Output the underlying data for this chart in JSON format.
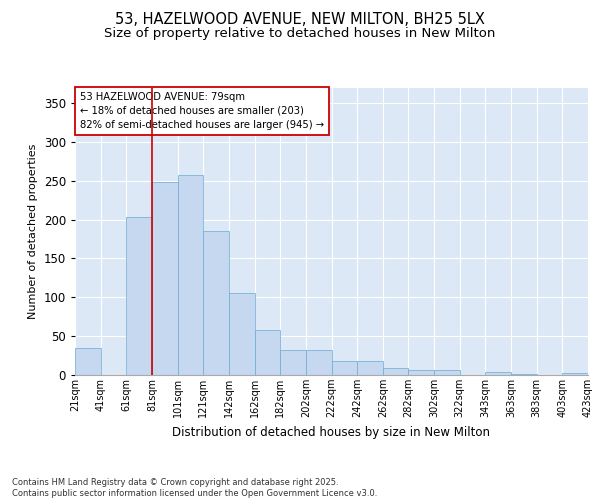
{
  "title_line1": "53, HAZELWOOD AVENUE, NEW MILTON, BH25 5LX",
  "title_line2": "Size of property relative to detached houses in New Milton",
  "xlabel": "Distribution of detached houses by size in New Milton",
  "ylabel": "Number of detached properties",
  "bar_color": "#c5d8f0",
  "bar_edge_color": "#6aaad4",
  "background_color": "#dce8f5",
  "annotation_text": "53 HAZELWOOD AVENUE: 79sqm\n← 18% of detached houses are smaller (203)\n82% of semi-detached houses are larger (945) →",
  "vline_color": "#cc0000",
  "categories": [
    "21sqm",
    "41sqm",
    "61sqm",
    "81sqm",
    "101sqm",
    "121sqm",
    "142sqm",
    "162sqm",
    "182sqm",
    "202sqm",
    "222sqm",
    "242sqm",
    "262sqm",
    "282sqm",
    "302sqm",
    "322sqm",
    "343sqm",
    "363sqm",
    "383sqm",
    "403sqm",
    "423sqm"
  ],
  "bins_values": [
    35,
    0,
    203,
    248,
    258,
    185,
    106,
    58,
    32,
    32,
    18,
    18,
    9,
    6,
    6,
    0,
    4,
    1,
    0,
    2
  ],
  "ylim": [
    0,
    370
  ],
  "yticks": [
    0,
    50,
    100,
    150,
    200,
    250,
    300,
    350
  ],
  "footer": "Contains HM Land Registry data © Crown copyright and database right 2025.\nContains public sector information licensed under the Open Government Licence v3.0.",
  "title_fontsize": 10.5,
  "subtitle_fontsize": 9.5
}
